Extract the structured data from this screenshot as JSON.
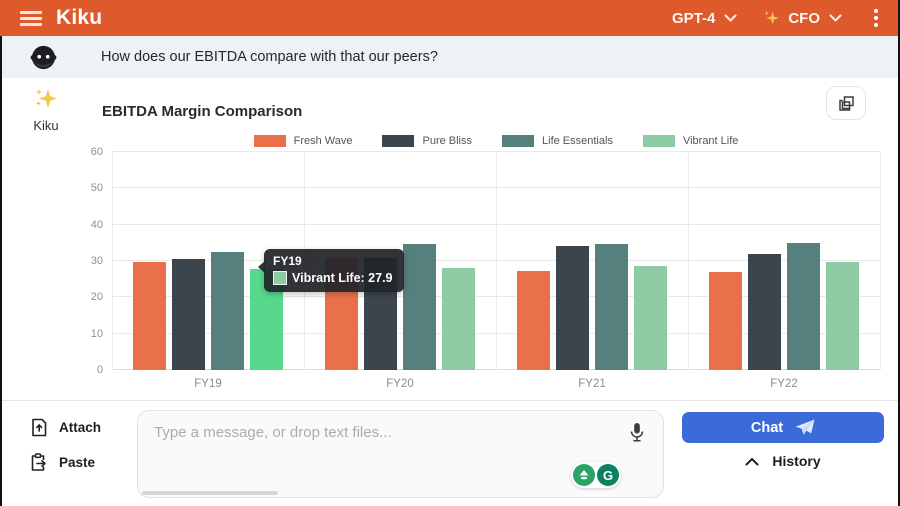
{
  "header": {
    "app_title": "Kiku",
    "model_selector": "GPT-4",
    "persona_selector": "CFO"
  },
  "user_message": {
    "text": "How does our EBITDA compare with that our peers?"
  },
  "assistant": {
    "name": "Kiku"
  },
  "chart_data": {
    "type": "bar",
    "title": "EBITDA Margin Comparison",
    "categories": [
      "FY19",
      "FY20",
      "FY21",
      "FY22"
    ],
    "series": [
      {
        "name": "Fresh Wave",
        "color": "#E8714C",
        "values": [
          29.7,
          30.8,
          27.2,
          26.9
        ]
      },
      {
        "name": "Pure Bliss",
        "color": "#3C444C",
        "values": [
          30.6,
          30.7,
          34.1,
          32.0
        ]
      },
      {
        "name": "Life Essentials",
        "color": "#55807E",
        "values": [
          32.4,
          34.8,
          34.8,
          35.0
        ]
      },
      {
        "name": "Vibrant Life",
        "color": "#8CCBA3",
        "values": [
          27.9,
          28.0,
          28.6,
          29.6
        ]
      }
    ],
    "highlight": {
      "category_index": 0,
      "series_index": 3,
      "color": "#57D88C"
    },
    "ylim": [
      0,
      60
    ],
    "yticks": [
      0,
      10,
      20,
      30,
      40,
      50,
      60
    ],
    "legend_position": "top",
    "grid": true,
    "xlabel": "",
    "ylabel": ""
  },
  "tooltip": {
    "title": "FY19",
    "text": "Vibrant Life: 27.9",
    "swatch_color": "#8CCBA3"
  },
  "composer": {
    "attach_label": "Attach",
    "paste_label": "Paste",
    "placeholder": "Type a message, or drop text files...",
    "chat_label": "Chat",
    "history_label": "History",
    "grammarly_g": "G"
  },
  "colors": {
    "header_bg": "#DE5A2C",
    "chat_button": "#3B6BD8",
    "user_bar_bg": "#EDF2F6",
    "tooltip_bg": "rgba(33,36,41,0.93)"
  }
}
